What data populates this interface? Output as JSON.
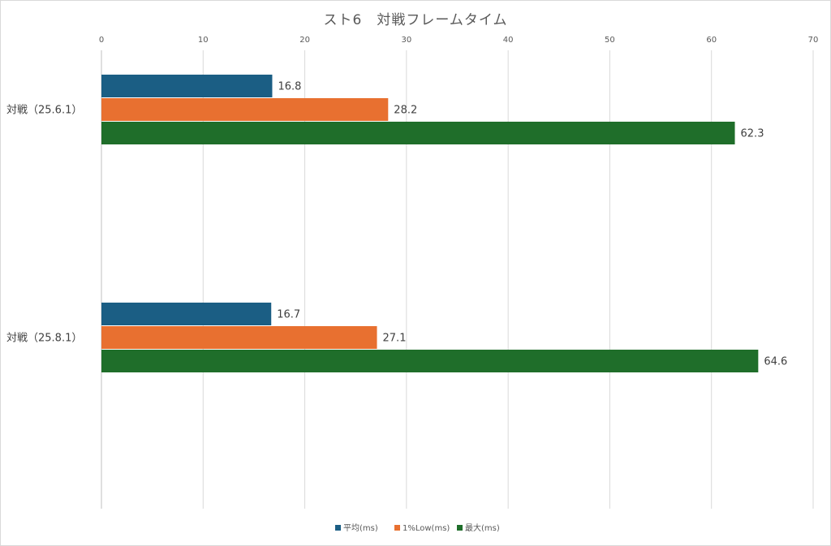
{
  "chart_data": {
    "type": "bar",
    "orientation": "horizontal",
    "title": "スト6　対戦フレームタイム",
    "categories": [
      "対戦（25.6.1）",
      "対戦（25.8.1）"
    ],
    "series": [
      {
        "name": "平均(ms)",
        "color": "#1b5e84",
        "values": [
          16.8,
          16.7
        ],
        "labels": [
          "16.8",
          "16.7"
        ]
      },
      {
        "name": "1%Low(ms)",
        "color": "#e87030",
        "values": [
          28.2,
          27.1
        ],
        "labels": [
          "28.2",
          "27.1"
        ]
      },
      {
        "name": "最大(ms)",
        "color": "#1f6e2a",
        "values": [
          62.3,
          64.6
        ],
        "labels": [
          "62.3",
          "64.6"
        ]
      }
    ],
    "xlim": [
      0,
      70
    ],
    "xticks": [
      0,
      10,
      20,
      30,
      40,
      50,
      60,
      70
    ],
    "xtick_labels": [
      "0",
      "10",
      "20",
      "30",
      "40",
      "50",
      "60",
      "70"
    ],
    "axis_position": "top",
    "grid": true,
    "legend_position": "bottom"
  }
}
